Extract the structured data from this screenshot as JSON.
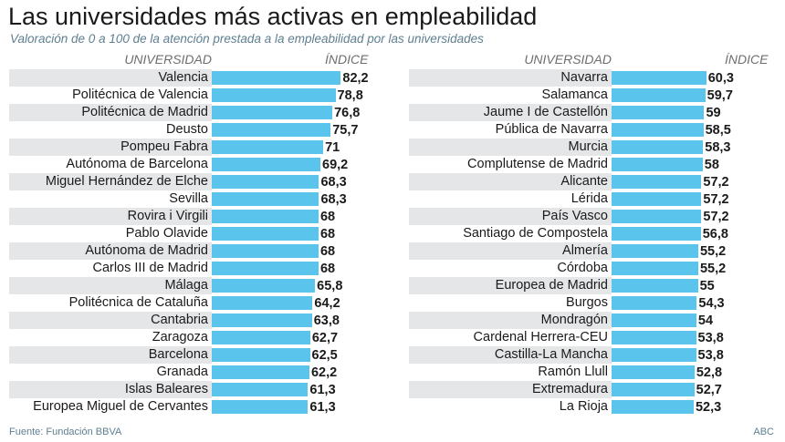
{
  "title": "Las universidades más activas en empleabilidad",
  "subtitle": "Valoración de 0 a 100 de la atención prestada a la empleabilidad por las universidades",
  "headers": {
    "university": "UNIVERSIDAD",
    "index": "ÍNDICE"
  },
  "source": "Fuente: Fundación BBVA",
  "credit": "ABC",
  "colors": {
    "bar": "#5bc4ec",
    "stripe": "#e4e6e8",
    "subtitle": "#5e7f91"
  },
  "chart_data": [
    {
      "type": "bar",
      "orientation": "horizontal",
      "title": "Las universidades más activas en empleabilidad",
      "subtitle": "Valoración de 0 a 100 de la atención prestada a la empleabilidad por las universidades",
      "xlabel": "ÍNDICE",
      "ylabel": "UNIVERSIDAD",
      "categories": [
        "Valencia",
        "Politécnica de Valencia",
        "Politécnica de Madrid",
        "Deusto",
        "Pompeu Fabra",
        "Autónoma de Barcelona",
        "Miguel Hernández de Elche",
        "Sevilla",
        "Rovira i Virgili",
        "Pablo Olavide",
        "Autónoma de Madrid",
        "Carlos III de Madrid",
        "Málaga",
        "Politécnica de Cataluña",
        "Cantabria",
        "Zaragoza",
        "Barcelona",
        "Granada",
        "Islas Baleares",
        "Europea Miguel de Cervantes"
      ],
      "values": [
        82.2,
        78.8,
        76.8,
        75.7,
        71,
        69.2,
        68.3,
        68.3,
        68,
        68,
        68,
        68,
        65.8,
        64.2,
        63.8,
        62.7,
        62.5,
        62.2,
        61.3,
        61.3
      ],
      "value_labels": [
        "82,2",
        "78,8",
        "76,8",
        "75,7",
        "71",
        "69,2",
        "68,3",
        "68,3",
        "68",
        "68",
        "68",
        "68",
        "65,8",
        "64,2",
        "63,8",
        "62,7",
        "62,5",
        "62,2",
        "61,3",
        "61,3"
      ],
      "grid": false
    },
    {
      "type": "bar",
      "orientation": "horizontal",
      "xlabel": "ÍNDICE",
      "ylabel": "UNIVERSIDAD",
      "categories": [
        "Navarra",
        "Salamanca",
        "Jaume I de Castellón",
        "Pública de Navarra",
        "Murcia",
        "Complutense de Madrid",
        "Alicante",
        "Lérida",
        "País Vasco",
        "Santiago de Compostela",
        "Almería",
        "Córdoba",
        "Europea de Madrid",
        "Burgos",
        "Mondragón",
        "Cardenal Herrera-CEU",
        "Castilla-La Mancha",
        "Ramón Llull",
        "Extremadura",
        "La Rioja"
      ],
      "values": [
        60.3,
        59.7,
        59,
        58.5,
        58.3,
        58,
        57.2,
        57.2,
        57.2,
        56.8,
        55.2,
        55.2,
        55,
        54.3,
        54,
        53.8,
        53.8,
        52.8,
        52.7,
        52.3
      ],
      "value_labels": [
        "60,3",
        "59,7",
        "59",
        "58,5",
        "58,3",
        "58",
        "57,2",
        "57,2",
        "57,2",
        "56,8",
        "55,2",
        "55,2",
        "55",
        "54,3",
        "54",
        "53,8",
        "53,8",
        "52,8",
        "52,7",
        "52,3"
      ],
      "grid": false
    }
  ]
}
